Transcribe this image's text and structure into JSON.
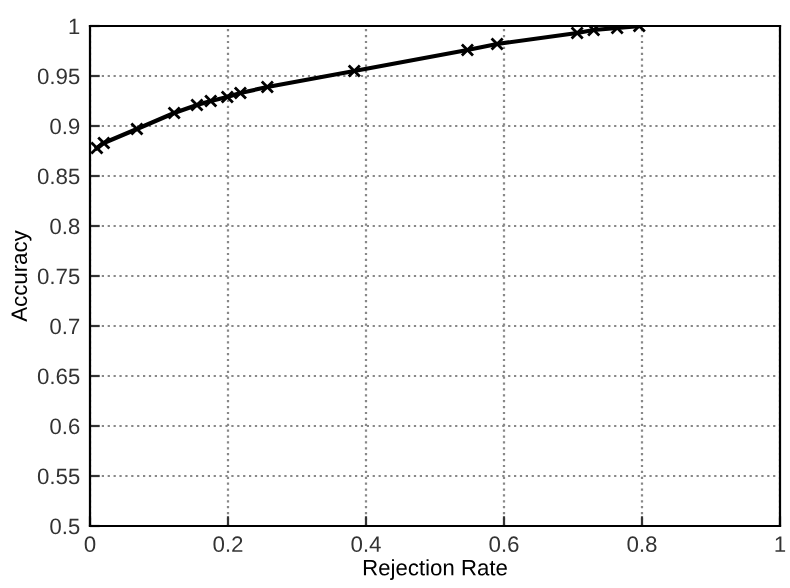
{
  "chart_data": {
    "type": "line",
    "xlabel": "Rejection Rate",
    "ylabel": "Accuracy",
    "series": [
      {
        "color": "#000000",
        "x": [
          0.01,
          0.02,
          0.068,
          0.122,
          0.155,
          0.175,
          0.199,
          0.218,
          0.257,
          0.383,
          0.547,
          0.59,
          0.706,
          0.73,
          0.764,
          0.796
        ],
        "values": [
          0.878,
          0.883,
          0.897,
          0.913,
          0.921,
          0.925,
          0.929,
          0.933,
          0.939,
          0.955,
          0.976,
          0.982,
          0.993,
          0.996,
          0.998,
          1.0
        ]
      }
    ],
    "xlim": [
      0,
      1
    ],
    "ylim": [
      0.5,
      1
    ],
    "xticks": [
      0,
      0.2,
      0.4,
      0.6,
      0.8,
      1
    ],
    "yticks": [
      0.5,
      0.55,
      0.6,
      0.65,
      0.7,
      0.75,
      0.8,
      0.85,
      0.9,
      0.95,
      1
    ],
    "grid": true,
    "marker": "cross",
    "line_style": "solid"
  }
}
